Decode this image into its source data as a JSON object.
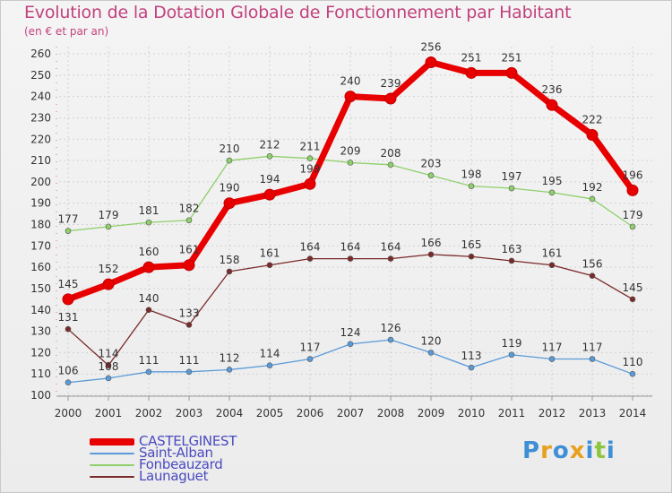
{
  "title": "Evolution de la Dotation Globale de Fonctionnement par Habitant",
  "subtitle": "(en € et par an)",
  "logo": {
    "letters": [
      "P",
      "r",
      "o",
      "x",
      "i",
      "t",
      "i"
    ],
    "colors": [
      "#3f8fd6",
      "#e8a020",
      "#3f8fd6",
      "#e8a020",
      "#3f8fd6",
      "#8cc63f",
      "#3f8fd6"
    ]
  },
  "chart_data": {
    "type": "line",
    "title": "Evolution de la Dotation Globale de Fonctionnement par Habitant",
    "subtitle": "(en € et par an)",
    "x": [
      "2000",
      "2001",
      "2002",
      "2003",
      "2004",
      "2005",
      "2006",
      "2007",
      "2008",
      "2009",
      "2010",
      "2011",
      "2012",
      "2013",
      "2014"
    ],
    "ylim": [
      100,
      260
    ],
    "yticks": [
      100,
      110,
      120,
      130,
      140,
      150,
      160,
      170,
      180,
      190,
      200,
      210,
      220,
      230,
      240,
      250,
      260
    ],
    "grid": true,
    "legend_position": "bottom-left",
    "series": [
      {
        "name": "CASTELGINEST",
        "color": "#e80000",
        "values": [
          145,
          152,
          160,
          161,
          190,
          194,
          199,
          240,
          239,
          256,
          251,
          251,
          236,
          222,
          196
        ]
      },
      {
        "name": "Saint-Alban",
        "color": "#5a9ad8",
        "values": [
          106,
          108,
          111,
          111,
          112,
          114,
          117,
          124,
          126,
          120,
          113,
          119,
          117,
          117,
          110
        ]
      },
      {
        "name": "Fonbeauzard",
        "color": "#8ed06a",
        "values": [
          177,
          179,
          181,
          182,
          210,
          212,
          211,
          209,
          208,
          203,
          198,
          197,
          195,
          192,
          179
        ]
      },
      {
        "name": "Launaguet",
        "color": "#7a2a2a",
        "values": [
          131,
          114,
          140,
          133,
          158,
          161,
          164,
          164,
          164,
          166,
          165,
          163,
          161,
          156,
          145
        ]
      }
    ]
  }
}
